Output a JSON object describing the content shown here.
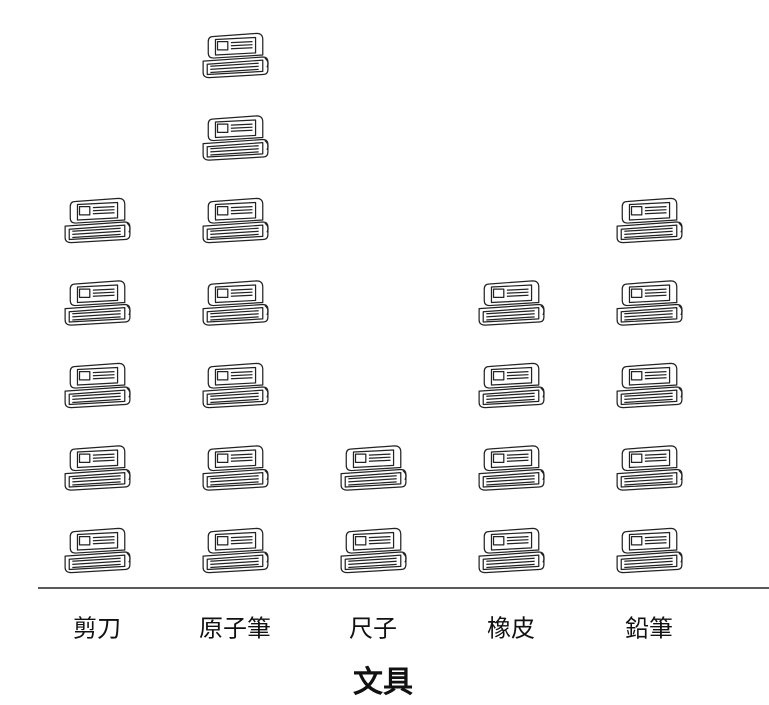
{
  "chart_data": {
    "type": "pictograph",
    "x_label": "文具",
    "categories": [
      "剪刀",
      "原子筆",
      "尺子",
      "橡皮",
      "鉛筆"
    ],
    "values": [
      5,
      7,
      2,
      4,
      5
    ]
  }
}
